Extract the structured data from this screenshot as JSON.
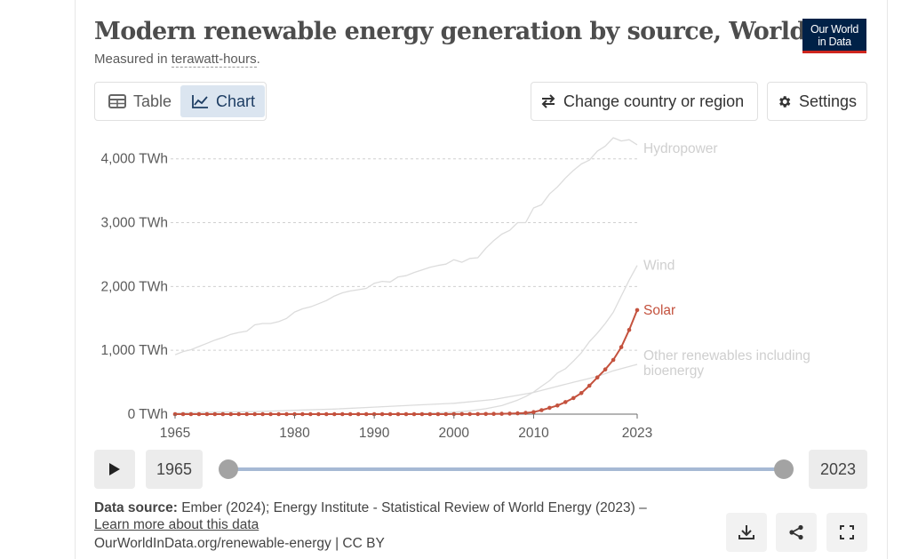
{
  "header": {
    "title": "Modern renewable energy generation by source, World",
    "subtitle_prefix": "Measured in ",
    "subtitle_unit": "terawatt-hours",
    "subtitle_suffix": ".",
    "logo_line1": "Our World",
    "logo_line2": "in Data"
  },
  "toolbar": {
    "table_label": "Table",
    "chart_label": "Chart",
    "change_country_label": "Change country or region",
    "settings_label": "Settings"
  },
  "timeline": {
    "start_year": "1965",
    "end_year": "2023"
  },
  "footer": {
    "source_label": "Data source:",
    "source_text": "Ember (2024); Energy Institute - Statistical Review of World Energy (2023) –",
    "learn_more": "Learn more about this data",
    "url_text": "OurWorldInData.org/renewable-energy | CC BY"
  },
  "colors": {
    "highlight": "#c4523e",
    "muted_line": "#dcdcdc",
    "muted_label": "#cfcfcf"
  },
  "chart_data": {
    "type": "line",
    "ylim": [
      0,
      4400
    ],
    "xlim": [
      1965,
      2023
    ],
    "y_ticks": [
      {
        "value": 0,
        "label": "0 TWh"
      },
      {
        "value": 1000,
        "label": "1,000 TWh"
      },
      {
        "value": 2000,
        "label": "2,000 TWh"
      },
      {
        "value": 3000,
        "label": "3,000 TWh"
      },
      {
        "value": 4000,
        "label": "4,000 TWh"
      }
    ],
    "x_ticks": [
      {
        "value": 1965,
        "label": "1965"
      },
      {
        "value": 1980,
        "label": "1980"
      },
      {
        "value": 1990,
        "label": "1990"
      },
      {
        "value": 2000,
        "label": "2000"
      },
      {
        "value": 2010,
        "label": "2010"
      },
      {
        "value": 2023,
        "label": "2023"
      }
    ],
    "series": [
      {
        "name": "Hydropower",
        "label_lines": [
          "Hydropower"
        ],
        "highlighted": false,
        "points": [
          [
            1965,
            930
          ],
          [
            1966,
            980
          ],
          [
            1967,
            1010
          ],
          [
            1968,
            1060
          ],
          [
            1969,
            1110
          ],
          [
            1970,
            1160
          ],
          [
            1971,
            1200
          ],
          [
            1972,
            1250
          ],
          [
            1973,
            1280
          ],
          [
            1974,
            1300
          ],
          [
            1975,
            1400
          ],
          [
            1976,
            1420
          ],
          [
            1977,
            1420
          ],
          [
            1978,
            1450
          ],
          [
            1979,
            1500
          ],
          [
            1980,
            1600
          ],
          [
            1981,
            1650
          ],
          [
            1982,
            1680
          ],
          [
            1983,
            1730
          ],
          [
            1984,
            1780
          ],
          [
            1985,
            1850
          ],
          [
            1986,
            1900
          ],
          [
            1987,
            1930
          ],
          [
            1988,
            1950
          ],
          [
            1989,
            1970
          ],
          [
            1990,
            2050
          ],
          [
            1991,
            2080
          ],
          [
            1992,
            2070
          ],
          [
            1993,
            2150
          ],
          [
            1994,
            2170
          ],
          [
            1995,
            2220
          ],
          [
            1996,
            2260
          ],
          [
            1997,
            2300
          ],
          [
            1998,
            2330
          ],
          [
            1999,
            2350
          ],
          [
            2000,
            2420
          ],
          [
            2001,
            2380
          ],
          [
            2002,
            2440
          ],
          [
            2003,
            2450
          ],
          [
            2004,
            2600
          ],
          [
            2005,
            2720
          ],
          [
            2006,
            2820
          ],
          [
            2007,
            2880
          ],
          [
            2008,
            3000
          ],
          [
            2009,
            3000
          ],
          [
            2010,
            3230
          ],
          [
            2011,
            3280
          ],
          [
            2012,
            3450
          ],
          [
            2013,
            3560
          ],
          [
            2014,
            3700
          ],
          [
            2015,
            3820
          ],
          [
            2016,
            3920
          ],
          [
            2017,
            3980
          ],
          [
            2018,
            4120
          ],
          [
            2019,
            4200
          ],
          [
            2020,
            4330
          ],
          [
            2021,
            4280
          ],
          [
            2022,
            4300
          ],
          [
            2023,
            4220
          ]
        ]
      },
      {
        "name": "Wind",
        "label_lines": [
          "Wind"
        ],
        "highlighted": false,
        "points": [
          [
            1965,
            0
          ],
          [
            1985,
            2
          ],
          [
            1990,
            4
          ],
          [
            1995,
            8
          ],
          [
            2000,
            31
          ],
          [
            2002,
            52
          ],
          [
            2004,
            85
          ],
          [
            2006,
            133
          ],
          [
            2008,
            220
          ],
          [
            2009,
            276
          ],
          [
            2010,
            346
          ],
          [
            2011,
            437
          ],
          [
            2012,
            524
          ],
          [
            2013,
            645
          ],
          [
            2014,
            712
          ],
          [
            2015,
            831
          ],
          [
            2016,
            962
          ],
          [
            2017,
            1135
          ],
          [
            2018,
            1270
          ],
          [
            2019,
            1420
          ],
          [
            2020,
            1596
          ],
          [
            2021,
            1850
          ],
          [
            2022,
            2100
          ],
          [
            2023,
            2330
          ]
        ]
      },
      {
        "name": "Other renewables including bioenergy",
        "label_lines": [
          "Other renewables including",
          "bioenergy"
        ],
        "highlighted": false,
        "points": [
          [
            1965,
            20
          ],
          [
            1970,
            30
          ],
          [
            1975,
            40
          ],
          [
            1980,
            60
          ],
          [
            1985,
            80
          ],
          [
            1990,
            110
          ],
          [
            1995,
            140
          ],
          [
            2000,
            170
          ],
          [
            2005,
            230
          ],
          [
            2010,
            340
          ],
          [
            2015,
            500
          ],
          [
            2018,
            590
          ],
          [
            2020,
            680
          ],
          [
            2023,
            780
          ]
        ]
      },
      {
        "name": "Solar",
        "label_lines": [
          "Solar"
        ],
        "highlighted": true,
        "points": [
          [
            1965,
            0
          ],
          [
            1966,
            0
          ],
          [
            1967,
            0
          ],
          [
            1968,
            0
          ],
          [
            1969,
            0
          ],
          [
            1970,
            0
          ],
          [
            1971,
            0
          ],
          [
            1972,
            0
          ],
          [
            1973,
            0
          ],
          [
            1974,
            0
          ],
          [
            1975,
            0
          ],
          [
            1976,
            0
          ],
          [
            1977,
            0
          ],
          [
            1978,
            0
          ],
          [
            1979,
            0
          ],
          [
            1980,
            0
          ],
          [
            1981,
            0
          ],
          [
            1982,
            0
          ],
          [
            1983,
            0
          ],
          [
            1984,
            0
          ],
          [
            1985,
            0
          ],
          [
            1986,
            0
          ],
          [
            1987,
            0
          ],
          [
            1988,
            0
          ],
          [
            1989,
            0
          ],
          [
            1990,
            0
          ],
          [
            1991,
            0
          ],
          [
            1992,
            0
          ],
          [
            1993,
            0
          ],
          [
            1994,
            0
          ],
          [
            1995,
            0
          ],
          [
            1996,
            0
          ],
          [
            1997,
            0
          ],
          [
            1998,
            0
          ],
          [
            1999,
            0
          ],
          [
            2000,
            1
          ],
          [
            2001,
            1
          ],
          [
            2002,
            2
          ],
          [
            2003,
            2
          ],
          [
            2004,
            3
          ],
          [
            2005,
            4
          ],
          [
            2006,
            6
          ],
          [
            2007,
            8
          ],
          [
            2008,
            12
          ],
          [
            2009,
            20
          ],
          [
            2010,
            32
          ],
          [
            2011,
            63
          ],
          [
            2012,
            99
          ],
          [
            2013,
            135
          ],
          [
            2014,
            190
          ],
          [
            2015,
            252
          ],
          [
            2016,
            330
          ],
          [
            2017,
            445
          ],
          [
            2018,
            575
          ],
          [
            2019,
            700
          ],
          [
            2020,
            850
          ],
          [
            2021,
            1050
          ],
          [
            2022,
            1320
          ],
          [
            2023,
            1630
          ]
        ]
      }
    ]
  }
}
